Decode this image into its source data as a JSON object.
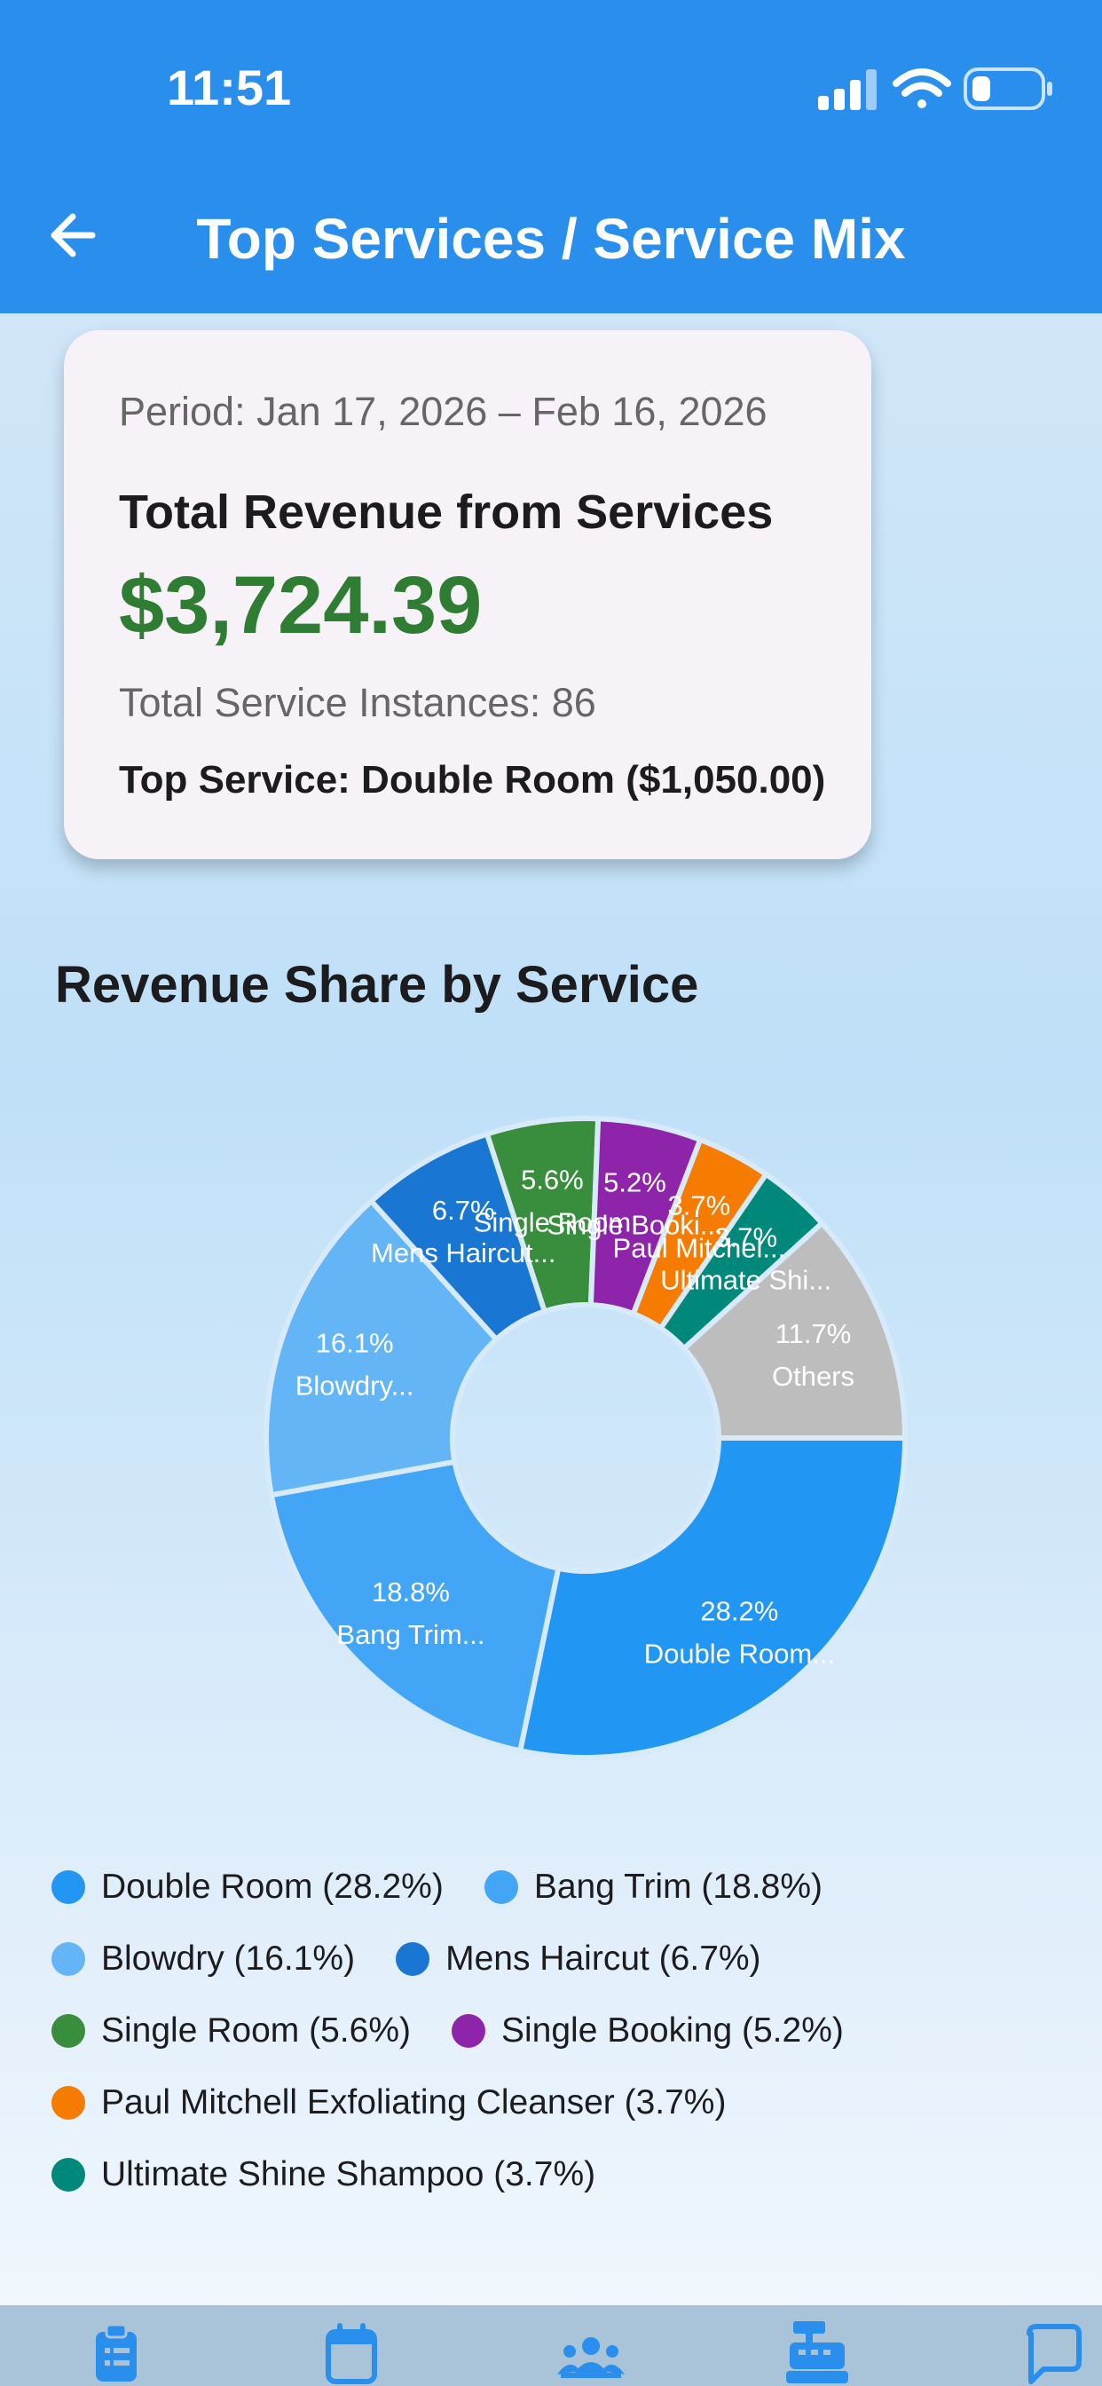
{
  "status": {
    "time": "11:51"
  },
  "header": {
    "title": "Top Services / Service Mix"
  },
  "summary": {
    "period": "Period: Jan 17, 2026 – Feb 16, 2026",
    "revenue_label": "Total Revenue from Services",
    "revenue_value": "$3,724.39",
    "instances": "Total Service Instances: 86",
    "top_service": "Top Service: Double Room ($1,050.00)"
  },
  "section": {
    "title": "Revenue Share by Service"
  },
  "chart_data": {
    "type": "pie",
    "title": "",
    "slices": [
      {
        "name": "Double Room",
        "pct": 28.2,
        "color": "#2196f3",
        "pct_label": "28.2%",
        "name_label": "Double Room..."
      },
      {
        "name": "Bang Trim",
        "pct": 18.8,
        "color": "#42a5f5",
        "pct_label": "18.8%",
        "name_label": "Bang Trim..."
      },
      {
        "name": "Blowdry",
        "pct": 16.1,
        "color": "#64b5f6",
        "pct_label": "16.1%",
        "name_label": "Blowdry..."
      },
      {
        "name": "Mens Haircut",
        "pct": 6.7,
        "color": "#1976d2",
        "pct_label": "6.7%",
        "name_label": "Mens Haircut..."
      },
      {
        "name": "Single Room",
        "pct": 5.6,
        "color": "#388e3c",
        "pct_label": "5.6%",
        "name_label": "Single Room"
      },
      {
        "name": "Single Booking",
        "pct": 5.2,
        "color": "#8e24aa",
        "pct_label": "5.2%",
        "name_label": "Single Booki..."
      },
      {
        "name": "Paul Mitchell Exfoliating Cleanser",
        "pct": 3.7,
        "color": "#f57c00",
        "pct_label": "3.7%",
        "name_label": "Paul Mitchel..."
      },
      {
        "name": "Ultimate Shine Shampoo",
        "pct": 3.7,
        "color": "#00897b",
        "pct_label": "3.7%",
        "name_label": "Ultimate Shi..."
      },
      {
        "name": "Others",
        "pct": 11.7,
        "color": "#bdbdbd",
        "pct_label": "11.7%",
        "name_label": "Others"
      }
    ]
  },
  "legend": {
    "rows": [
      [
        {
          "label": "Double Room (28.2%)",
          "color": "#2196f3"
        },
        {
          "label": "Bang Trim (18.8%)",
          "color": "#42a5f5"
        }
      ],
      [
        {
          "label": "Blowdry (16.1%)",
          "color": "#64b5f6"
        },
        {
          "label": "Mens Haircut (6.7%)",
          "color": "#1976d2"
        }
      ],
      [
        {
          "label": "Single Room (5.6%)",
          "color": "#388e3c"
        },
        {
          "label": "Single Booking (5.2%)",
          "color": "#8e24aa"
        }
      ],
      [
        {
          "label": "Paul Mitchell Exfoliating Cleanser (3.7%)",
          "color": "#f57c00"
        }
      ],
      [
        {
          "label": "Ultimate Shine Shampoo (3.7%)",
          "color": "#00897b"
        }
      ]
    ]
  },
  "nav": {
    "icons": [
      "clipboard-icon",
      "calendar-icon",
      "team-icon",
      "cash-register-icon",
      "chat-icon"
    ]
  }
}
